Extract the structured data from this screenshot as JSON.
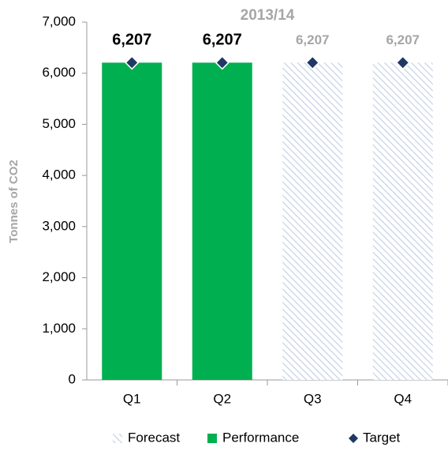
{
  "chart_data": {
    "type": "bar",
    "title": "2013/14",
    "y_label": "Tonnes of CO2",
    "categories": [
      "Q1",
      "Q2",
      "Q3",
      "Q4"
    ],
    "series": [
      {
        "name": "Forecast",
        "color": "#c5d3e8",
        "values": [
          null,
          null,
          6207,
          6207
        ],
        "value_labels": [
          null,
          null,
          "6,207",
          "6,207"
        ]
      },
      {
        "name": "Performance",
        "color": "#00b050",
        "values": [
          6207,
          6207,
          null,
          null
        ],
        "value_labels": [
          "6,207",
          "6,207",
          null,
          null
        ]
      },
      {
        "name": "Target",
        "color": "#1f3864",
        "values": [
          6207,
          6207,
          6207,
          6207
        ]
      }
    ],
    "ylim": [
      0,
      7000
    ],
    "yticks": [
      0,
      {
        "value": 1000,
        "label": "1,000"
      },
      {
        "value": 2000,
        "label": "2,000"
      },
      {
        "value": 3000,
        "label": "3,000"
      },
      {
        "value": 4000,
        "label": "4,000"
      },
      {
        "value": 5000,
        "label": "5,000"
      },
      {
        "value": 6000,
        "label": "6,000"
      },
      {
        "value": 7000,
        "label": "7,000"
      }
    ],
    "grid": false
  }
}
